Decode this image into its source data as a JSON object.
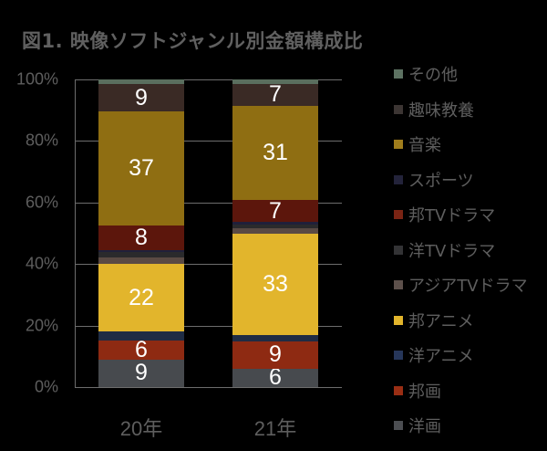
{
  "title": "図1.  映像ソフトジャンル別金額構成比",
  "chart_data": {
    "type": "bar",
    "stacked": true,
    "percent": true,
    "title": "図1.  映像ソフトジャンル別金額構成比",
    "xlabel": "",
    "ylabel": "",
    "ylim": [
      0,
      100
    ],
    "yticks": [
      "0%",
      "20%",
      "40%",
      "60%",
      "80%",
      "100%"
    ],
    "grid": true,
    "legend_position": "right",
    "categories": [
      "20年",
      "21年"
    ],
    "series": [
      {
        "name": "洋画",
        "color": "#474a4e",
        "values": [
          9,
          6
        ],
        "labels": [
          "9",
          "6"
        ]
      },
      {
        "name": "邦画",
        "color": "#8e2a12",
        "values": [
          6,
          9
        ],
        "labels": [
          "6",
          "9"
        ]
      },
      {
        "name": "洋アニメ",
        "color": "#1f2c44",
        "values": [
          3,
          2
        ],
        "labels": [
          "",
          ""
        ]
      },
      {
        "name": "邦アニメ",
        "color": "#e2b52c",
        "values": [
          22,
          33
        ],
        "labels": [
          "22",
          "33"
        ]
      },
      {
        "name": "アジアTVドラマ",
        "color": "#5a4a44",
        "values": [
          2,
          2
        ],
        "labels": [
          "",
          ""
        ]
      },
      {
        "name": "洋TVドラマ",
        "color": "#2a2a2c",
        "values": [
          2,
          1
        ],
        "labels": [
          "",
          ""
        ]
      },
      {
        "name": "スポーツ",
        "color": "#20203a",
        "values": [
          0.5,
          1
        ],
        "labels": [
          "",
          ""
        ]
      },
      {
        "name": "邦TVドラマ",
        "color": "#5c160c",
        "values": [
          8,
          7
        ],
        "labels": [
          "8",
          "7"
        ]
      },
      {
        "name": "音楽",
        "color": "#8f6e12",
        "values": [
          37,
          31
        ],
        "labels": [
          "37",
          "31"
        ]
      },
      {
        "name": "趣味教養",
        "color": "#3a2a25",
        "values": [
          9,
          7
        ],
        "labels": [
          "9",
          "7"
        ]
      },
      {
        "name": "その他",
        "color": "#5a6e5e",
        "values": [
          1.5,
          1.5
        ],
        "labels": [
          "",
          ""
        ]
      }
    ]
  },
  "legend": [
    {
      "label": "その他",
      "color": "#5d7262"
    },
    {
      "label": "趣味教養",
      "color": "#3c3533"
    },
    {
      "label": "音楽",
      "color": "#a07d1c"
    },
    {
      "label": "スポーツ",
      "color": "#23233a"
    },
    {
      "label": "邦TVドラマ",
      "color": "#7a2414"
    },
    {
      "label": "洋TVドラマ",
      "color": "#333335"
    },
    {
      "label": "アジアTVドラマ",
      "color": "#5d504b"
    },
    {
      "label": "邦アニメ",
      "color": "#e2b52c"
    },
    {
      "label": "洋アニメ",
      "color": "#26365a"
    },
    {
      "label": "邦画",
      "color": "#9a2e14"
    },
    {
      "label": "洋画",
      "color": "#4c4e52"
    }
  ]
}
